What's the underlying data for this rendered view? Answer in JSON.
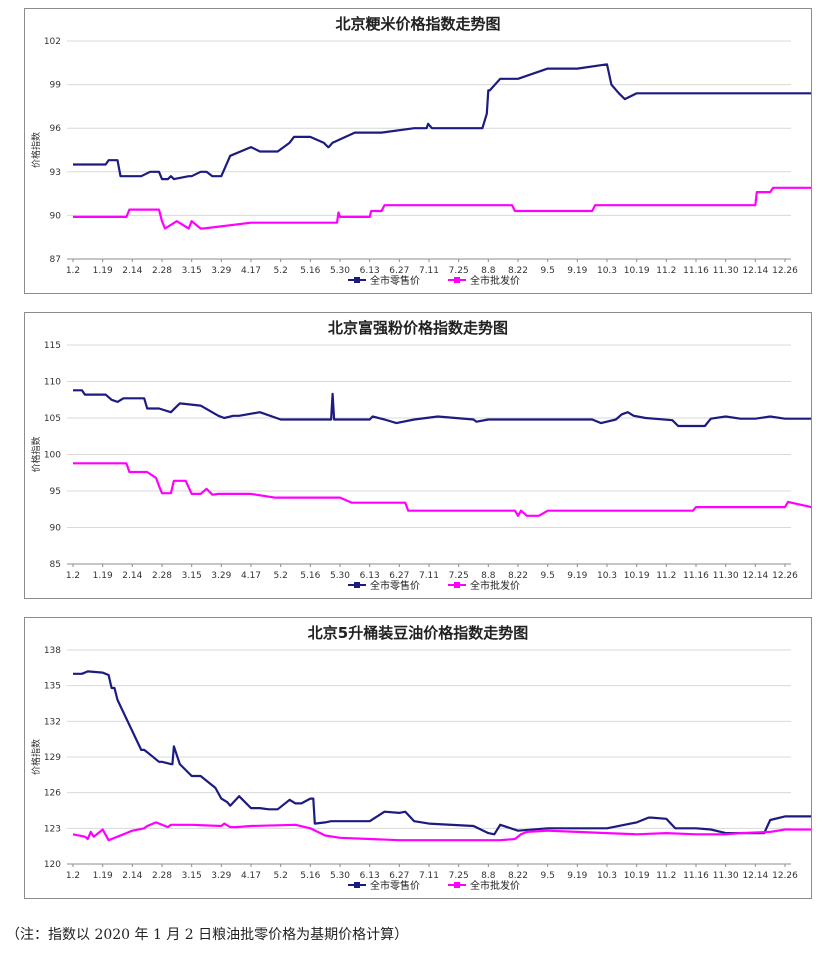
{
  "note": "（注：指数以 2020 年 1 月 2 日粮油批零价格为基期价格计算）",
  "colors": {
    "retail": "#1c1c80",
    "wholesale": "#ff00ff",
    "grid": "#d9d9d9",
    "axis": "#8c8c8c"
  },
  "chart_data": [
    {
      "type": "line",
      "title": "北京粳米价格指数走势图",
      "ylabel": "价格指数",
      "xlabel": "",
      "x_tick_labels": [
        "1.2",
        "1.19",
        "2.14",
        "2.28",
        "3.15",
        "3.29",
        "4.17",
        "5.2",
        "5.16",
        "5.30",
        "6.13",
        "6.27",
        "7.11",
        "7.25",
        "8.8",
        "8.22",
        "9.5",
        "9.19",
        "10.3",
        "10.19",
        "11.2",
        "11.16",
        "11.30",
        "12.14",
        "12.26"
      ],
      "y_ticks": [
        "87",
        "90",
        "93",
        "96",
        "99",
        "102"
      ],
      "ylim": [
        87,
        102
      ],
      "grid": true,
      "legend": "bottom",
      "series": [
        {
          "name": "全市零售价",
          "color": "#1c1c80",
          "x": [
            0,
            1.1,
            1.2,
            1.5,
            1.6,
            2.3,
            2.6,
            2.9,
            3.0,
            3.2,
            3.3,
            3.4,
            3.9,
            4.0,
            4.3,
            4.5,
            4.7,
            5.0,
            5.3,
            6.0,
            6.3,
            6.5,
            6.9,
            7.3,
            7.45,
            7.6,
            8.0,
            8.45,
            8.6,
            8.62,
            8.75,
            9.5,
            10.4,
            11.5,
            11.92,
            11.97,
            12.1,
            12.3,
            13.0,
            13.8,
            13.95,
            14.0,
            14.05,
            14.4,
            15.0,
            16.0,
            17.0,
            18.0,
            18.15,
            18.4,
            18.6,
            19.0,
            19.1,
            19.2,
            19.25,
            19.6,
            19.9,
            20.0,
            20.2,
            20.3,
            20.6,
            21.0,
            21.3,
            21.4,
            21.9,
            22.1,
            23.0,
            23.05,
            24.0,
            24.9
          ],
          "y": [
            93.5,
            93.5,
            93.8,
            93.8,
            92.7,
            92.7,
            93.0,
            93.0,
            92.5,
            92.5,
            92.7,
            92.5,
            92.7,
            92.7,
            93.0,
            93.0,
            92.7,
            92.7,
            94.1,
            94.7,
            94.4,
            94.4,
            94.4,
            95.0,
            95.4,
            95.4,
            95.4,
            95.0,
            94.7,
            94.7,
            95.0,
            95.7,
            95.7,
            96.0,
            96.0,
            96.3,
            96.0,
            96.0,
            96.0,
            96.0,
            97.0,
            98.6,
            98.6,
            99.4,
            99.4,
            100.1,
            100.1,
            100.4,
            99.0,
            98.4,
            98.0,
            98.4,
            98.4,
            98.4,
            98.4,
            98.4,
            98.4,
            98.4,
            98.4,
            98.4,
            98.4,
            98.4,
            98.4,
            98.4,
            98.4,
            98.4,
            98.4,
            98.4,
            98.4,
            98.4
          ]
        },
        {
          "name": "全市批发价",
          "color": "#ff00ff",
          "x": [
            0,
            1.8,
            1.9,
            2.9,
            3.0,
            3.1,
            3.5,
            3.9,
            4.0,
            4.3,
            4.4,
            6.0,
            8.9,
            8.95,
            9.0,
            10.0,
            10.05,
            10.4,
            10.5,
            13.0,
            14.8,
            14.9,
            17.5,
            17.6,
            22.0,
            23.0,
            23.05,
            23.5,
            23.6,
            24.9
          ],
          "y": [
            89.9,
            89.9,
            90.4,
            90.4,
            89.6,
            89.1,
            89.6,
            89.1,
            89.6,
            89.1,
            89.1,
            89.5,
            89.5,
            90.2,
            89.9,
            89.9,
            90.3,
            90.3,
            90.7,
            90.7,
            90.7,
            90.3,
            90.3,
            90.7,
            90.7,
            90.7,
            91.6,
            91.6,
            91.9,
            91.9
          ]
        }
      ]
    },
    {
      "type": "line",
      "title": "北京富强粉价格指数走势图",
      "ylabel": "价格指数",
      "xlabel": "",
      "x_tick_labels": [
        "1.2",
        "1.19",
        "2.14",
        "2.28",
        "3.15",
        "3.29",
        "4.17",
        "5.2",
        "5.16",
        "5.30",
        "6.13",
        "6.27",
        "7.11",
        "7.25",
        "8.8",
        "8.22",
        "9.5",
        "9.19",
        "10.3",
        "10.19",
        "11.2",
        "11.16",
        "11.30",
        "12.14",
        "12.26"
      ],
      "y_ticks": [
        "85",
        "90",
        "95",
        "100",
        "105",
        "110",
        "115"
      ],
      "ylim": [
        85,
        115
      ],
      "grid": true,
      "legend": "bottom",
      "series": [
        {
          "name": "全市零售价",
          "color": "#1c1c80",
          "x": [
            0,
            0.3,
            0.4,
            1.1,
            1.3,
            1.5,
            1.7,
            2.4,
            2.5,
            2.9,
            3.3,
            3.5,
            3.6,
            4.3,
            4.6,
            4.9,
            5.1,
            5.4,
            5.6,
            6.3,
            7.0,
            8.7,
            8.75,
            8.8,
            10.0,
            10.1,
            10.5,
            10.9,
            11.5,
            12.3,
            13.5,
            13.6,
            14.0,
            15.0,
            17.5,
            17.8,
            18.3,
            18.5,
            18.7,
            18.9,
            19.3,
            20.2,
            20.4,
            21.3,
            21.5,
            22.0,
            22.5,
            23.0,
            23.5,
            24.0,
            24.9
          ],
          "y": [
            108.8,
            108.8,
            108.2,
            108.2,
            107.5,
            107.2,
            107.7,
            107.7,
            106.3,
            106.3,
            105.8,
            106.6,
            107.0,
            106.7,
            106.0,
            105.3,
            105.0,
            105.3,
            105.3,
            105.8,
            104.8,
            104.8,
            108.3,
            104.8,
            104.8,
            105.2,
            104.8,
            104.3,
            104.8,
            105.2,
            104.8,
            104.5,
            104.8,
            104.8,
            104.8,
            104.3,
            104.8,
            105.5,
            105.8,
            105.3,
            105.0,
            104.7,
            103.9,
            103.9,
            104.9,
            105.2,
            104.9,
            104.9,
            105.2,
            104.9,
            104.9
          ]
        },
        {
          "name": "全市批发价",
          "color": "#ff00ff",
          "x": [
            0,
            1.8,
            1.9,
            2.5,
            2.8,
            2.9,
            3.0,
            3.3,
            3.4,
            3.8,
            4.0,
            4.3,
            4.5,
            4.7,
            4.9,
            5.3,
            6.0,
            6.8,
            9.0,
            9.4,
            9.6,
            11.2,
            11.3,
            14.9,
            15.0,
            15.1,
            15.3,
            15.7,
            16.0,
            20.9,
            21.0,
            24.0,
            24.1,
            24.9
          ],
          "y": [
            98.8,
            98.8,
            97.6,
            97.6,
            96.8,
            95.7,
            94.7,
            94.7,
            96.4,
            96.4,
            94.6,
            94.6,
            95.3,
            94.5,
            94.6,
            94.6,
            94.6,
            94.1,
            94.1,
            93.4,
            93.4,
            93.4,
            92.3,
            92.3,
            91.6,
            92.3,
            91.6,
            91.6,
            92.3,
            92.3,
            92.8,
            92.8,
            93.5,
            92.8
          ]
        }
      ]
    },
    {
      "type": "line",
      "title": "北京5升桶装豆油价格指数走势图",
      "ylabel": "价格指数",
      "xlabel": "",
      "x_tick_labels": [
        "1.2",
        "1.19",
        "2.14",
        "2.28",
        "3.15",
        "3.29",
        "4.17",
        "5.2",
        "5.16",
        "5.30",
        "6.13",
        "6.27",
        "7.11",
        "7.25",
        "8.8",
        "8.22",
        "9.5",
        "9.19",
        "10.3",
        "10.19",
        "11.2",
        "11.16",
        "11.30",
        "12.14",
        "12.26"
      ],
      "y_ticks": [
        "120",
        "123",
        "126",
        "129",
        "132",
        "135",
        "138"
      ],
      "ylim": [
        120,
        138
      ],
      "grid": true,
      "legend": "bottom",
      "series": [
        {
          "name": "全市零售价",
          "color": "#1c1c80",
          "x": [
            0,
            0.3,
            0.5,
            1.0,
            1.1,
            1.2,
            1.3,
            1.4,
            1.5,
            2.3,
            2.4,
            2.5,
            2.9,
            3.0,
            3.3,
            3.35,
            3.4,
            3.6,
            4.0,
            4.3,
            4.8,
            5.0,
            5.2,
            5.3,
            5.6,
            6.0,
            6.3,
            6.6,
            6.9,
            7.3,
            7.5,
            7.7,
            8.0,
            8.1,
            8.15,
            8.5,
            8.7,
            10.0,
            10.5,
            11.0,
            11.2,
            11.5,
            12.0,
            13.5,
            14.0,
            14.2,
            14.4,
            15.0,
            16.0,
            17.5,
            18.0,
            19.0,
            19.4,
            19.5,
            20.0,
            20.3,
            21.0,
            21.5,
            22.0,
            22.5,
            23.3,
            23.5,
            24.0,
            24.9
          ],
          "y": [
            136.0,
            136.0,
            136.2,
            136.1,
            136.0,
            135.9,
            134.8,
            134.8,
            133.8,
            129.6,
            129.6,
            129.4,
            128.6,
            128.6,
            128.4,
            128.4,
            129.9,
            128.4,
            127.4,
            127.4,
            126.4,
            125.5,
            125.2,
            124.9,
            125.7,
            124.7,
            124.7,
            124.6,
            124.6,
            125.4,
            125.1,
            125.1,
            125.5,
            125.5,
            123.4,
            123.5,
            123.6,
            123.6,
            124.4,
            124.3,
            124.4,
            123.6,
            123.4,
            123.2,
            122.6,
            122.5,
            123.3,
            122.8,
            123.0,
            123.0,
            123.0,
            123.5,
            123.9,
            123.9,
            123.8,
            123.0,
            123.0,
            122.9,
            122.6,
            122.6,
            122.6,
            123.7,
            124.0,
            124.0
          ]
        },
        {
          "name": "全市批发价",
          "color": "#ff00ff",
          "x": [
            0,
            0.4,
            0.5,
            0.6,
            0.7,
            1.0,
            1.2,
            1.3,
            1.7,
            1.8,
            2.0,
            2.4,
            2.5,
            2.8,
            3.2,
            3.3,
            4.0,
            5.0,
            5.1,
            5.3,
            5.5,
            6.0,
            7.5,
            8.0,
            8.5,
            9.0,
            10.0,
            11.0,
            12.0,
            13.0,
            14.4,
            14.9,
            15.1,
            15.3,
            16.0,
            17.0,
            18.0,
            19.0,
            20.0,
            21.0,
            22.0,
            22.5,
            23.5,
            24.0,
            24.9
          ],
          "y": [
            122.5,
            122.3,
            122.1,
            122.7,
            122.3,
            122.9,
            122.0,
            122.1,
            122.5,
            122.6,
            122.8,
            123.0,
            123.2,
            123.5,
            123.1,
            123.3,
            123.3,
            123.2,
            123.4,
            123.1,
            123.1,
            123.2,
            123.3,
            123.0,
            122.4,
            122.2,
            122.1,
            122.0,
            122.0,
            122.0,
            122.0,
            122.1,
            122.5,
            122.7,
            122.8,
            122.7,
            122.6,
            122.5,
            122.6,
            122.5,
            122.5,
            122.6,
            122.7,
            122.9,
            122.9
          ]
        }
      ]
    }
  ]
}
